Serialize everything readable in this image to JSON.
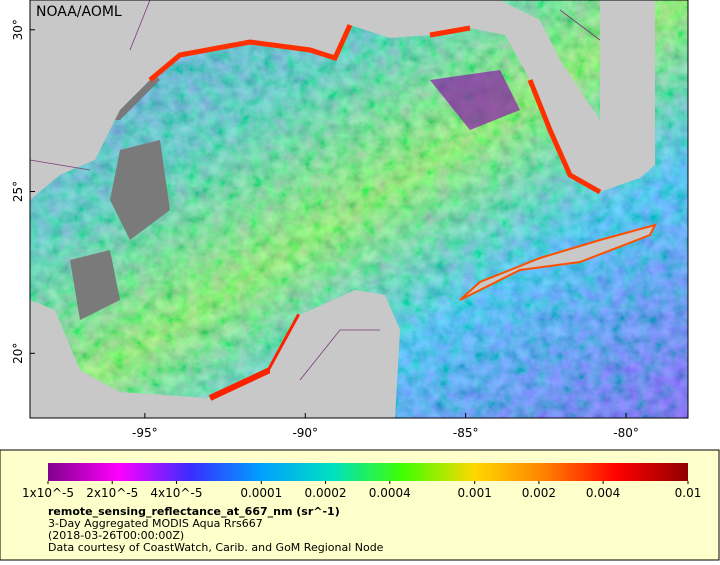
{
  "map": {
    "source": "NOAA/AOML",
    "lonlim": [
      -98.58,
      -78.07
    ],
    "latlim": [
      18.0,
      30.92
    ],
    "lon_ticks": [
      {
        "value": -95,
        "label": "-95°"
      },
      {
        "value": -90,
        "label": "-90°"
      },
      {
        "value": -85,
        "label": "-85°"
      },
      {
        "value": -80,
        "label": "-80°"
      }
    ],
    "lat_ticks": [
      {
        "value": 20,
        "label": "20°"
      },
      {
        "value": 25,
        "label": "25°"
      },
      {
        "value": 30,
        "label": "30°"
      }
    ]
  },
  "legend": {
    "colorbar": {
      "scale": "log",
      "lim": [
        1e-05,
        0.01
      ],
      "colors": [
        "#80008c",
        "#ff00ff",
        "#3a2cff",
        "#00a0ff",
        "#00e0c0",
        "#40ff00",
        "#ffd800",
        "#ff8000",
        "#ff0000",
        "#900000"
      ],
      "ticks": [
        {
          "value": 1e-05,
          "label": "1x10^-5"
        },
        {
          "value": 2e-05,
          "label": "2x10^-5"
        },
        {
          "value": 4e-05,
          "label": "4x10^-5"
        },
        0.0001,
        0.0002,
        0.0004,
        0.001,
        0.002,
        0.004,
        0.01
      ]
    },
    "variable": "remote_sensing_reflectance_at_667_nm (sr^-1)",
    "lines": [
      "3-Day Aggregated MODIS Aqua Rrs667",
      "(2018-03-26T00:00:00Z)",
      "Data courtesy of CoastWatch, Carib. and GoM Regional Node"
    ]
  }
}
